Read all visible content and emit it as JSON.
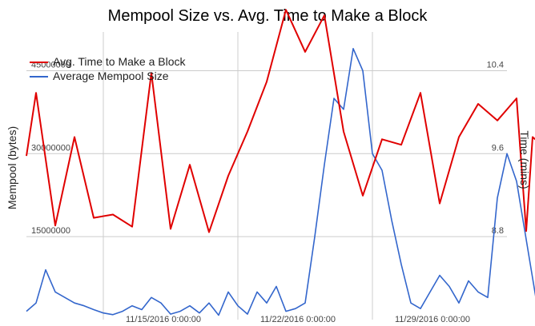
{
  "chart_data": {
    "type": "line",
    "title": "Mempool Size vs. Avg. Time to Make a Block",
    "y_left_label": "Mempool (bytes)",
    "y_right_label": "Time (mins)",
    "y_left_ticks": [
      "15000000",
      "30000000",
      "45000000"
    ],
    "y_right_ticks": [
      "8.8",
      "9.6",
      "10.4"
    ],
    "y_left_range": [
      0,
      52000000
    ],
    "y_right_range": [
      8.0,
      10.6
    ],
    "x_range": [
      "2016-11-11",
      "2016-12-06"
    ],
    "x_ticks": [
      {
        "date": "2016-11-15",
        "label": "11/15/2016 0:00:00"
      },
      {
        "date": "2016-11-22",
        "label": "11/22/2016 0:00:00"
      },
      {
        "date": "2016-11-29",
        "label": "11/29/2016 0:00:00"
      }
    ],
    "legend_position": "top-left",
    "series": [
      {
        "name": "Avg. Time to Make a Block",
        "axis": "right",
        "color": "#e00000",
        "x": [
          "2016-11-11",
          "2016-11-11",
          "2016-11-12",
          "2016-11-13",
          "2016-11-14",
          "2016-11-15",
          "2016-11-16",
          "2016-11-17",
          "2016-11-18",
          "2016-11-19",
          "2016-11-20",
          "2016-11-21",
          "2016-11-22",
          "2016-11-23",
          "2016-11-24",
          "2016-11-25",
          "2016-11-26",
          "2016-11-27",
          "2016-11-28",
          "2016-11-29",
          "2016-11-30",
          "2016-12-01",
          "2016-12-02",
          "2016-12-03",
          "2016-12-04",
          "2016-12-05",
          "2016-12-06",
          "2016-12-07",
          "2016-12-07",
          "2016-12-07"
        ],
        "values": [
          9.48,
          10.05,
          8.85,
          9.65,
          8.92,
          8.95,
          8.84,
          10.23,
          8.82,
          9.4,
          8.79,
          9.3,
          9.7,
          10.15,
          10.8,
          10.42,
          10.75,
          9.7,
          9.12,
          9.63,
          9.58,
          10.05,
          9.05,
          9.65,
          9.95,
          9.8,
          10.0,
          8.8,
          9.65,
          9.6
        ]
      },
      {
        "name": "Average Mempool Size",
        "axis": "left",
        "color": "#3366cc",
        "x": [
          "2016-11-11",
          "2016-11-11",
          "2016-11-12",
          "2016-11-12",
          "2016-11-13",
          "2016-11-13",
          "2016-11-14",
          "2016-11-14",
          "2016-11-15",
          "2016-11-15",
          "2016-11-16",
          "2016-11-16",
          "2016-11-17",
          "2016-11-17",
          "2016-11-18",
          "2016-11-18",
          "2016-11-19",
          "2016-11-19",
          "2016-11-20",
          "2016-11-20",
          "2016-11-21",
          "2016-11-21",
          "2016-11-22",
          "2016-11-22",
          "2016-11-23",
          "2016-11-23",
          "2016-11-24",
          "2016-11-24",
          "2016-11-25",
          "2016-11-25",
          "2016-11-26",
          "2016-11-26",
          "2016-11-27",
          "2016-11-27",
          "2016-11-28",
          "2016-11-28",
          "2016-11-29",
          "2016-11-29",
          "2016-11-30",
          "2016-11-30",
          "2016-12-01",
          "2016-12-01",
          "2016-12-02",
          "2016-12-02",
          "2016-12-03",
          "2016-12-03",
          "2016-12-04",
          "2016-12-04",
          "2016-12-05",
          "2016-12-05",
          "2016-12-06",
          "2016-12-06",
          "2016-12-07"
        ],
        "values": [
          1500000,
          3000000,
          9000000,
          5000000,
          4000000,
          3000000,
          2500000,
          1800000,
          1200000,
          900000,
          1500000,
          2500000,
          1800000,
          4000000,
          3000000,
          1000000,
          1500000,
          2500000,
          1200000,
          3000000,
          800000,
          5000000,
          2500000,
          1000000,
          5000000,
          3000000,
          6000000,
          1500000,
          2000000,
          3000000,
          15000000,
          28000000,
          40000000,
          38000000,
          49000000,
          45000000,
          30000000,
          27000000,
          18000000,
          10000000,
          3000000,
          2000000,
          5000000,
          8000000,
          6000000,
          3000000,
          7000000,
          5000000,
          4000000,
          22000000,
          30000000,
          25000000,
          4000000
        ]
      }
    ]
  }
}
